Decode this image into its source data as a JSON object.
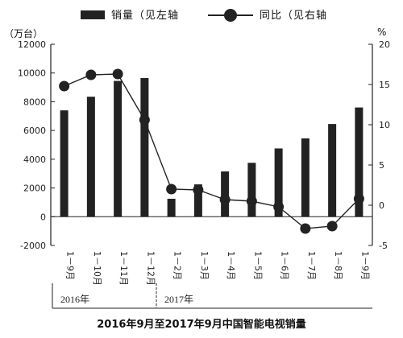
{
  "legend": {
    "bar_label": "销量（见左轴",
    "line_label": "同比（见右轴"
  },
  "left_unit": "（万台）",
  "right_unit": "%",
  "caption": "2016年9月至2017年9月中国智能电视销量",
  "years": [
    "2016年",
    "2017年"
  ],
  "chart_data": {
    "type": "bar",
    "categories": [
      "1－9月",
      "1－10月",
      "1－11月",
      "1－12月",
      "1－2月",
      "1－3月",
      "1－4月",
      "1－5月",
      "1－6月",
      "1－7月",
      "1－8月",
      "1－9月"
    ],
    "series": [
      {
        "name": "销量（见左轴",
        "type": "bar",
        "axis": "left",
        "values": [
          7400,
          8350,
          9450,
          9650,
          1250,
          2250,
          3150,
          3750,
          4750,
          5450,
          6450,
          7600
        ]
      },
      {
        "name": "同比（见右轴",
        "type": "line",
        "axis": "right",
        "values": [
          14.8,
          16.2,
          16.3,
          10.6,
          2.0,
          1.9,
          0.7,
          0.5,
          -0.2,
          -2.9,
          -2.6,
          0.8
        ]
      }
    ],
    "left_axis": {
      "ticks": [
        "-2000",
        "0",
        "2000",
        "4000",
        "6000",
        "8000",
        "10000",
        "12000"
      ],
      "ylim": [
        -2000,
        12000
      ]
    },
    "right_axis": {
      "ticks": [
        "-5",
        "0",
        "5",
        "10",
        "15",
        "20"
      ],
      "ylim": [
        -5,
        20
      ]
    },
    "grid": false,
    "legend_position": "top",
    "colors": {
      "bar": "#222222",
      "line": "#222222",
      "marker": "#222222"
    }
  }
}
